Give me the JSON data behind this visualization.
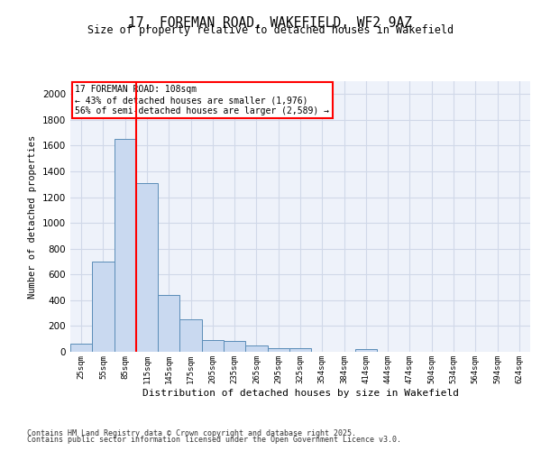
{
  "title1": "17, FOREMAN ROAD, WAKEFIELD, WF2 9AZ",
  "title2": "Size of property relative to detached houses in Wakefield",
  "xlabel": "Distribution of detached houses by size in Wakefield",
  "ylabel": "Number of detached properties",
  "categories": [
    "25sqm",
    "55sqm",
    "85sqm",
    "115sqm",
    "145sqm",
    "175sqm",
    "205sqm",
    "235sqm",
    "265sqm",
    "295sqm",
    "325sqm",
    "354sqm",
    "384sqm",
    "414sqm",
    "444sqm",
    "474sqm",
    "504sqm",
    "534sqm",
    "564sqm",
    "594sqm",
    "624sqm"
  ],
  "values": [
    65,
    700,
    1650,
    1310,
    440,
    250,
    90,
    85,
    50,
    30,
    25,
    0,
    0,
    20,
    0,
    0,
    0,
    0,
    0,
    0,
    0
  ],
  "bar_color": "#c9d9f0",
  "bar_edge_color": "#5b8db8",
  "grid_color": "#d0d8e8",
  "background_color": "#eef2fa",
  "red_line_x": 2.5,
  "annotation_line1": "17 FOREMAN ROAD: 108sqm",
  "annotation_line2": "← 43% of detached houses are smaller (1,976)",
  "annotation_line3": "56% of semi-detached houses are larger (2,589) →",
  "footer1": "Contains HM Land Registry data © Crown copyright and database right 2025.",
  "footer2": "Contains public sector information licensed under the Open Government Licence v3.0.",
  "ylim": [
    0,
    2100
  ],
  "yticks": [
    0,
    200,
    400,
    600,
    800,
    1000,
    1200,
    1400,
    1600,
    1800,
    2000
  ]
}
